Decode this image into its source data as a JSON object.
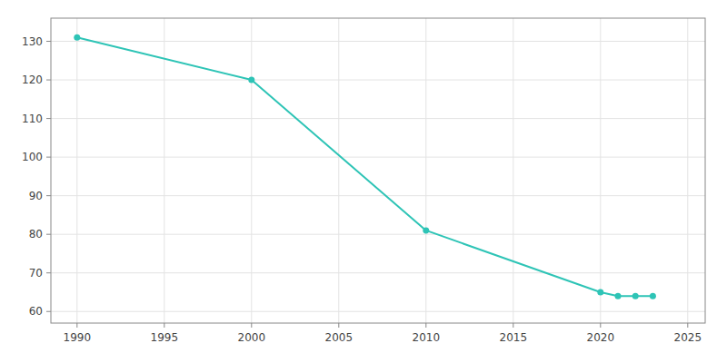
{
  "chart_data": {
    "type": "line",
    "x": [
      1990,
      2000,
      2010,
      2020,
      2021,
      2022,
      2023
    ],
    "values": [
      131,
      120,
      81,
      65,
      64,
      64,
      64
    ],
    "color": "#2ec4b6",
    "marker": "circle",
    "xlim": [
      1988.5,
      2026
    ],
    "ylim": [
      57,
      136
    ],
    "xticks": [
      1990,
      1995,
      2000,
      2005,
      2010,
      2015,
      2020,
      2025
    ],
    "yticks": [
      60,
      70,
      80,
      90,
      100,
      110,
      120,
      130
    ],
    "grid": true
  }
}
